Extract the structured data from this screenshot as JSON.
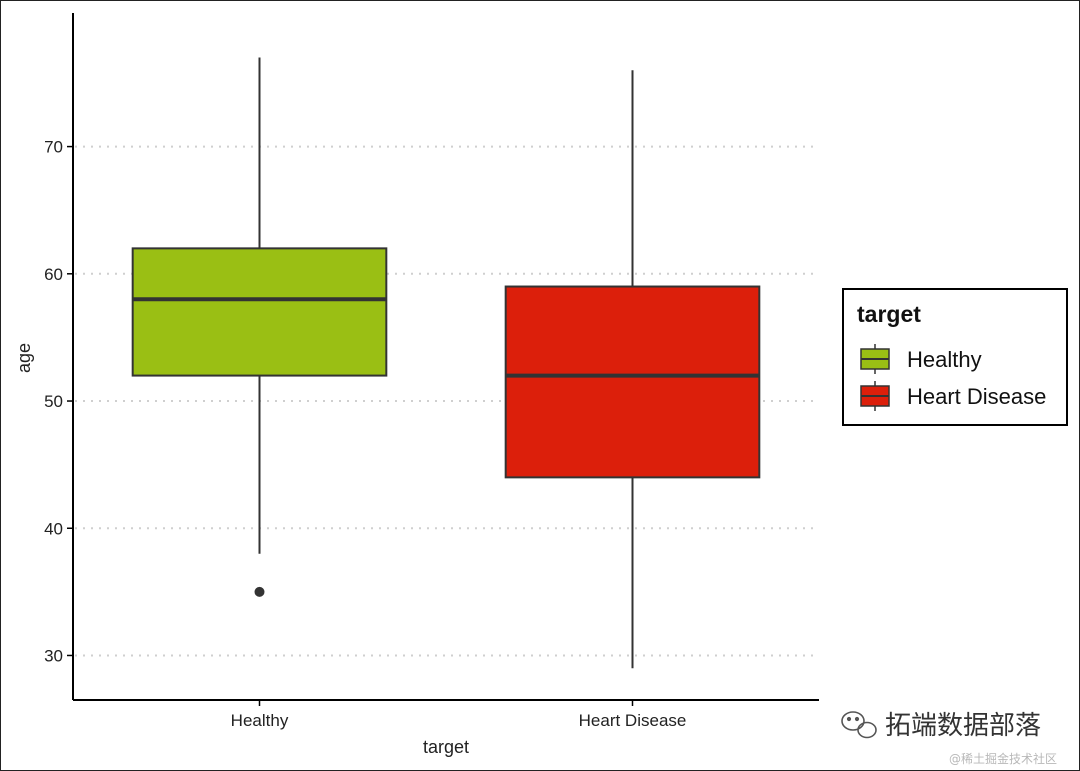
{
  "chart_data": {
    "type": "box",
    "title": "",
    "xlabel": "target",
    "ylabel": "age",
    "categories": [
      "Healthy",
      "Heart Disease"
    ],
    "ylim": [
      26.5,
      80.5
    ],
    "yticks": [
      30,
      40,
      50,
      60,
      70
    ],
    "grid": "horizontal dotted",
    "legend": {
      "title": "target",
      "position": "right",
      "entries": [
        "Healthy",
        "Heart Disease"
      ]
    },
    "series": [
      {
        "name": "Healthy",
        "color": "#9abf14",
        "whisker_low": 38,
        "q1": 52,
        "median": 58,
        "q3": 62,
        "whisker_high": 77,
        "outliers": [
          35
        ]
      },
      {
        "name": "Heart Disease",
        "color": "#dc1f0b",
        "whisker_low": 29,
        "q1": 44,
        "median": 52,
        "q3": 59,
        "whisker_high": 76,
        "outliers": []
      }
    ]
  },
  "watermark": {
    "main": "拓端数据部落",
    "sub": "@稀土掘金技术社区"
  }
}
